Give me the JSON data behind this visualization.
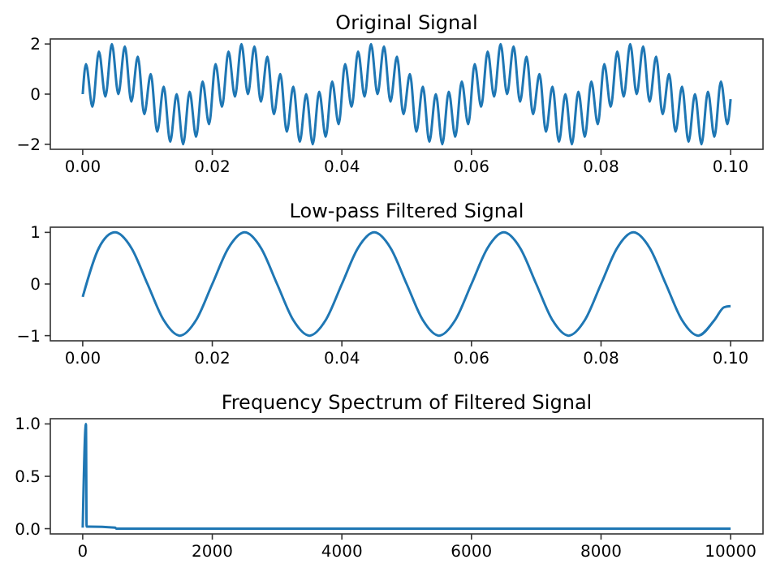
{
  "chart_data": [
    {
      "type": "line",
      "title": "Original Signal",
      "xlim": [
        -0.005,
        0.105
      ],
      "ylim": [
        -2.2,
        2.2
      ],
      "xticks": [
        {
          "value": 0,
          "label": "0.00"
        },
        {
          "value": 0.02,
          "label": "0.02"
        },
        {
          "value": 0.04,
          "label": "0.04"
        },
        {
          "value": 0.06,
          "label": "0.06"
        },
        {
          "value": 0.08,
          "label": "0.08"
        },
        {
          "value": 0.1,
          "label": "0.10"
        }
      ],
      "yticks": [
        {
          "value": -2,
          "label": "−2"
        },
        0,
        2
      ],
      "series": [
        {
          "color": "#1f77b4",
          "x": [
            0,
            0.0005,
            0.0015,
            0.0025,
            0.0035,
            0.0045,
            0.0055,
            0.0065,
            0.0075,
            0.0085,
            0.0095,
            0.0105,
            0.0115,
            0.0125,
            0.0135,
            0.0145,
            0.0155,
            0.0165,
            0.0175,
            0.0185,
            0.0195,
            0.0205,
            0.0215,
            0.0225,
            0.0235,
            0.0245,
            0.0255,
            0.0265,
            0.0275,
            0.0285,
            0.0295,
            0.0305,
            0.0315,
            0.0325,
            0.0335,
            0.0345,
            0.0355,
            0.0365,
            0.0375,
            0.0385,
            0.0395,
            0.0405,
            0.0415,
            0.0425,
            0.0435,
            0.0445,
            0.0455,
            0.0465,
            0.0475,
            0.0485,
            0.0495,
            0.0505,
            0.0515,
            0.0525,
            0.0535,
            0.0545,
            0.0555,
            0.0565,
            0.0575,
            0.0585,
            0.0595,
            0.0605,
            0.0615,
            0.0625,
            0.0635,
            0.0645,
            0.0655,
            0.0665,
            0.0675,
            0.0685,
            0.0695,
            0.0705,
            0.0715,
            0.0725,
            0.0735,
            0.0745,
            0.0755,
            0.0765,
            0.0775,
            0.0785,
            0.0795,
            0.0805,
            0.0815,
            0.0825,
            0.0835,
            0.0845,
            0.0855,
            0.0865,
            0.0875,
            0.0885,
            0.0895,
            0.0905,
            0.0915,
            0.0925,
            0.0935,
            0.0945,
            0.0955,
            0.0965,
            0.0975,
            0.0985,
            0.0995,
            0.1
          ],
          "values": [
            0,
            1.2,
            -0.5,
            1.7,
            -0.1,
            2.0,
            0.0,
            1.9,
            -0.3,
            1.5,
            -0.8,
            0.8,
            -1.5,
            0.3,
            -1.9,
            0.0,
            -2.0,
            0.1,
            -1.7,
            0.5,
            -1.2,
            1.2,
            -0.5,
            1.7,
            -0.1,
            2.0,
            0.0,
            1.9,
            -0.3,
            1.5,
            -0.8,
            0.8,
            -1.5,
            0.3,
            -1.9,
            0.0,
            -2.0,
            0.1,
            -1.7,
            0.5,
            -1.2,
            1.2,
            -0.5,
            1.7,
            -0.1,
            2.0,
            0.0,
            1.9,
            -0.3,
            1.5,
            -0.8,
            0.8,
            -1.5,
            0.3,
            -1.9,
            0.0,
            -2.0,
            0.1,
            -1.7,
            0.5,
            -1.2,
            1.2,
            -0.5,
            1.7,
            -0.1,
            2.0,
            0.0,
            1.9,
            -0.3,
            1.5,
            -0.8,
            0.8,
            -1.5,
            0.3,
            -1.9,
            0.0,
            -2.0,
            0.1,
            -1.7,
            0.5,
            -1.2,
            1.2,
            -0.5,
            1.7,
            -0.1,
            2.0,
            0.0,
            1.9,
            -0.3,
            1.5,
            -0.8,
            0.8,
            -1.5,
            0.3,
            -1.9,
            0.0,
            -2.0,
            0.1,
            -1.7,
            0.5,
            -1.2,
            -0.2
          ]
        }
      ]
    },
    {
      "type": "line",
      "title": "Low-pass Filtered Signal",
      "xlim": [
        -0.005,
        0.105
      ],
      "ylim": [
        -1.1,
        1.1
      ],
      "xticks": [
        {
          "value": 0,
          "label": "0.00"
        },
        {
          "value": 0.02,
          "label": "0.02"
        },
        {
          "value": 0.04,
          "label": "0.04"
        },
        {
          "value": 0.06,
          "label": "0.06"
        },
        {
          "value": 0.08,
          "label": "0.08"
        },
        {
          "value": 0.1,
          "label": "0.10"
        }
      ],
      "yticks": [
        {
          "value": -1,
          "label": "−1"
        },
        0,
        1
      ],
      "series": [
        {
          "color": "#1f77b4",
          "x": [
            0,
            0.0025,
            0.005,
            0.0075,
            0.01,
            0.0125,
            0.015,
            0.0175,
            0.02,
            0.0225,
            0.025,
            0.0275,
            0.03,
            0.0325,
            0.035,
            0.0375,
            0.04,
            0.0425,
            0.045,
            0.0475,
            0.05,
            0.0525,
            0.055,
            0.0575,
            0.06,
            0.0625,
            0.065,
            0.0675,
            0.07,
            0.0725,
            0.075,
            0.0775,
            0.08,
            0.0825,
            0.085,
            0.0875,
            0.09,
            0.0925,
            0.095,
            0.0975,
            0.099,
            0.1
          ],
          "values": [
            -0.25,
            0.7,
            1.0,
            0.7,
            0.0,
            -0.7,
            -1.0,
            -0.7,
            0.0,
            0.7,
            1.0,
            0.7,
            0.0,
            -0.7,
            -1.0,
            -0.7,
            0.0,
            0.7,
            1.0,
            0.7,
            0.0,
            -0.7,
            -1.0,
            -0.7,
            0.0,
            0.7,
            1.0,
            0.7,
            0.0,
            -0.7,
            -1.0,
            -0.7,
            0.0,
            0.7,
            1.0,
            0.7,
            0.0,
            -0.7,
            -1.0,
            -0.7,
            -0.45,
            -0.43
          ]
        }
      ]
    },
    {
      "type": "line",
      "title": "Frequency Spectrum of Filtered Signal",
      "xlim": [
        -500,
        10500
      ],
      "ylim": [
        -0.05,
        1.05
      ],
      "xticks": [
        0,
        2000,
        4000,
        6000,
        8000,
        10000
      ],
      "yticks": [
        {
          "value": 0,
          "label": "0.0"
        },
        {
          "value": 0.5,
          "label": "0.5"
        },
        {
          "value": 1,
          "label": "1.0"
        }
      ],
      "series": [
        {
          "color": "#1f77b4",
          "x": [
            0,
            50,
            60,
            100,
            500,
            520,
            10000
          ],
          "values": [
            0.01,
            1.0,
            0.02,
            0.02,
            0.01,
            0.0,
            0.0
          ]
        }
      ]
    }
  ]
}
